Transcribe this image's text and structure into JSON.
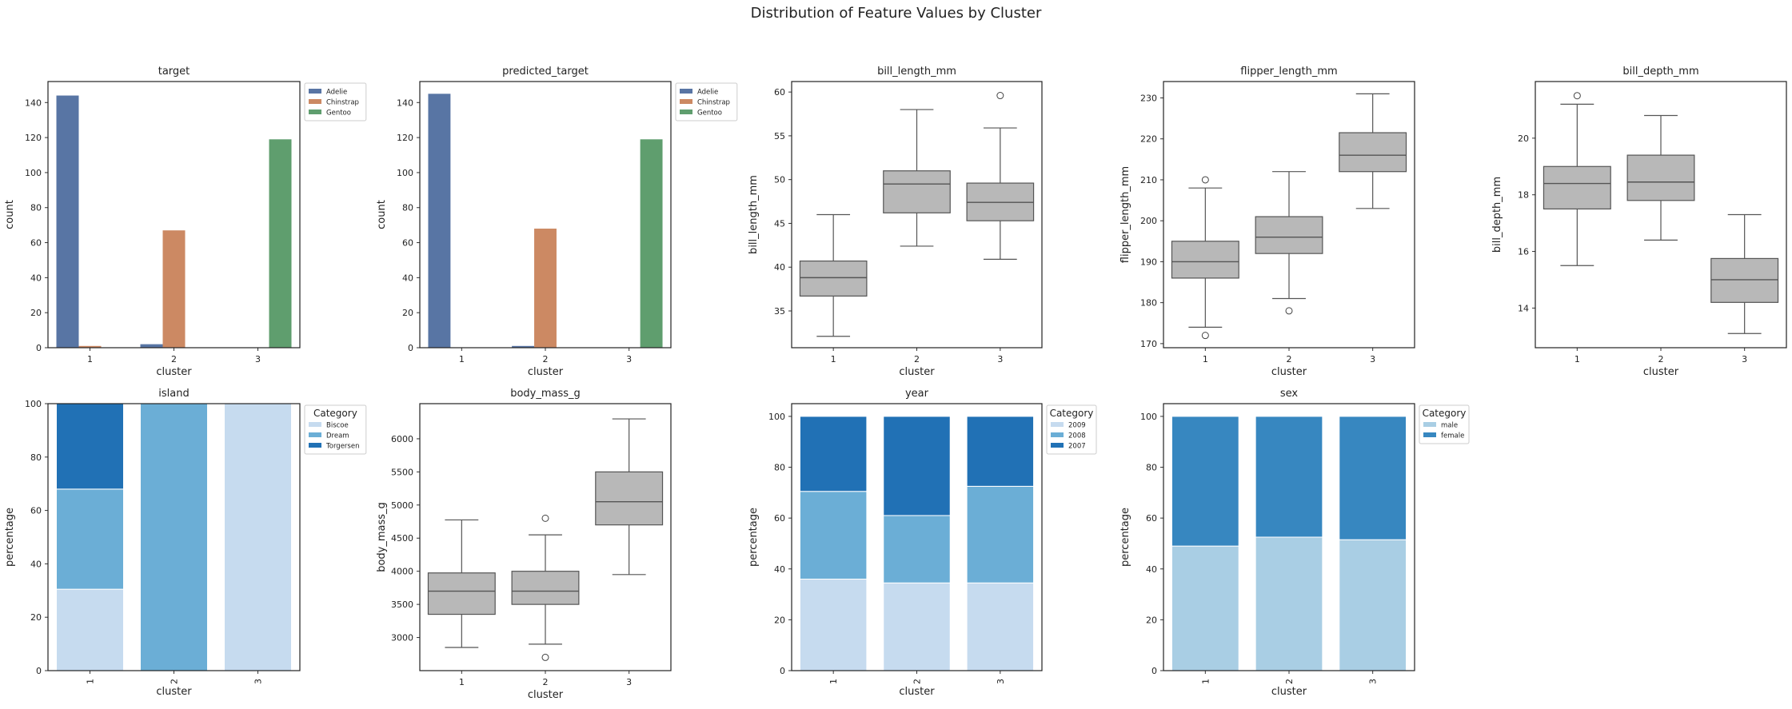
{
  "figure": {
    "title": "Distribution of Feature Values by Cluster"
  },
  "colors": {
    "adelie": "#5875a4",
    "chinstrap": "#cc8963",
    "gentoo": "#5f9e6e",
    "box": "#b8b8b8",
    "box_edge": "#555555",
    "blue_light": "#c6dbef",
    "blue_mid": "#6baed6",
    "blue_dark": "#2171b5",
    "sex_light": "#a9cee4",
    "sex_dark": "#3787c0"
  },
  "chart_data": [
    {
      "id": "target",
      "type": "bar",
      "title": "target",
      "xlabel": "cluster",
      "ylabel": "count",
      "categories": [
        "1",
        "2",
        "3"
      ],
      "ylim": [
        0,
        152
      ],
      "yticks": [
        0,
        20,
        40,
        60,
        80,
        100,
        120,
        140
      ],
      "series": [
        {
          "name": "Adelie",
          "color": "adelie",
          "values": [
            144,
            2,
            0
          ]
        },
        {
          "name": "Chinstrap",
          "color": "chinstrap",
          "values": [
            1,
            67,
            0
          ]
        },
        {
          "name": "Gentoo",
          "color": "gentoo",
          "values": [
            0,
            0,
            119
          ]
        }
      ],
      "legend": "upper-right-outside"
    },
    {
      "id": "predicted_target",
      "type": "bar",
      "title": "predicted_target",
      "xlabel": "cluster",
      "ylabel": "count",
      "categories": [
        "1",
        "2",
        "3"
      ],
      "ylim": [
        0,
        152
      ],
      "yticks": [
        0,
        20,
        40,
        60,
        80,
        100,
        120,
        140
      ],
      "series": [
        {
          "name": "Adelie",
          "color": "adelie",
          "values": [
            145,
            1,
            0
          ]
        },
        {
          "name": "Chinstrap",
          "color": "chinstrap",
          "values": [
            0,
            68,
            0
          ]
        },
        {
          "name": "Gentoo",
          "color": "gentoo",
          "values": [
            0,
            0,
            119
          ]
        }
      ],
      "legend": "upper-right-outside"
    },
    {
      "id": "bill_length_mm",
      "type": "box",
      "title": "bill_length_mm",
      "xlabel": "cluster",
      "ylabel": "bill_length_mm",
      "categories": [
        "1",
        "2",
        "3"
      ],
      "ylim": [
        30.8,
        61.2
      ],
      "yticks": [
        35,
        40,
        45,
        50,
        55,
        60
      ],
      "boxes": [
        {
          "whislo": 32.1,
          "q1": 36.7,
          "med": 38.8,
          "q3": 40.7,
          "whishi": 46.0,
          "fliers": []
        },
        {
          "whislo": 42.4,
          "q1": 46.2,
          "med": 49.5,
          "q3": 51.0,
          "whishi": 58.0,
          "fliers": []
        },
        {
          "whislo": 40.9,
          "q1": 45.3,
          "med": 47.4,
          "q3": 49.6,
          "whishi": 55.9,
          "fliers": [
            59.6
          ]
        }
      ]
    },
    {
      "id": "flipper_length_mm",
      "type": "box",
      "title": "flipper_length_mm",
      "xlabel": "cluster",
      "ylabel": "flipper_length_mm",
      "categories": [
        "1",
        "2",
        "3"
      ],
      "ylim": [
        169,
        234
      ],
      "yticks": [
        170,
        180,
        190,
        200,
        210,
        220,
        230
      ],
      "boxes": [
        {
          "whislo": 174,
          "q1": 186,
          "med": 190,
          "q3": 195,
          "whishi": 208,
          "fliers": [
            210,
            172
          ]
        },
        {
          "whislo": 181,
          "q1": 192,
          "med": 196,
          "q3": 201,
          "whishi": 212,
          "fliers": [
            178
          ]
        },
        {
          "whislo": 203,
          "q1": 212,
          "med": 216,
          "q3": 221.5,
          "whishi": 231,
          "fliers": []
        }
      ]
    },
    {
      "id": "bill_depth_mm",
      "type": "box",
      "title": "bill_depth_mm",
      "xlabel": "cluster",
      "ylabel": "bill_depth_mm",
      "categories": [
        "1",
        "2",
        "3"
      ],
      "ylim": [
        12.6,
        22.0
      ],
      "yticks": [
        14,
        16,
        18,
        20
      ],
      "boxes": [
        {
          "whislo": 15.5,
          "q1": 17.5,
          "med": 18.4,
          "q3": 19.0,
          "whishi": 21.2,
          "fliers": [
            21.5
          ]
        },
        {
          "whislo": 16.4,
          "q1": 17.8,
          "med": 18.45,
          "q3": 19.4,
          "whishi": 20.8,
          "fliers": []
        },
        {
          "whislo": 13.1,
          "q1": 14.2,
          "med": 15.0,
          "q3": 15.75,
          "whishi": 17.3,
          "fliers": []
        }
      ]
    },
    {
      "id": "island",
      "type": "stacked-bar",
      "title": "island",
      "xlabel": "cluster",
      "ylabel": "percentage",
      "categories": [
        "1",
        "2",
        "3"
      ],
      "ylim": [
        0,
        100
      ],
      "yticks": [
        0,
        20,
        40,
        60,
        80,
        100
      ],
      "rotate_xticks": true,
      "legend_title": "Category",
      "series": [
        {
          "name": "Biscoe",
          "color": "blue_light",
          "values": [
            30.5,
            0,
            100
          ]
        },
        {
          "name": "Dream",
          "color": "blue_mid",
          "values": [
            37.5,
            100,
            0
          ]
        },
        {
          "name": "Torgersen",
          "color": "blue_dark",
          "values": [
            32,
            0,
            0
          ]
        }
      ]
    },
    {
      "id": "body_mass_g",
      "type": "box",
      "title": "body_mass_g",
      "xlabel": "cluster",
      "ylabel": "body_mass_g",
      "categories": [
        "1",
        "2",
        "3"
      ],
      "ylim": [
        2500,
        6530
      ],
      "yticks": [
        3000,
        3500,
        4000,
        4500,
        5000,
        5500,
        6000
      ],
      "boxes": [
        {
          "whislo": 2850,
          "q1": 3350,
          "med": 3700,
          "q3": 3975,
          "whishi": 4775,
          "fliers": []
        },
        {
          "whislo": 2900,
          "q1": 3500,
          "med": 3700,
          "q3": 4000,
          "whishi": 4550,
          "fliers": [
            4800,
            2700
          ]
        },
        {
          "whislo": 3950,
          "q1": 4700,
          "med": 5050,
          "q3": 5500,
          "whishi": 6300,
          "fliers": []
        }
      ]
    },
    {
      "id": "year",
      "type": "stacked-bar",
      "title": "year",
      "xlabel": "cluster",
      "ylabel": "percentage",
      "categories": [
        "1",
        "2",
        "3"
      ],
      "ylim": [
        0,
        105
      ],
      "yticks": [
        0,
        20,
        40,
        60,
        80,
        100
      ],
      "rotate_xticks": true,
      "legend_title": "Category",
      "series": [
        {
          "name": "2009",
          "color": "blue_light",
          "values": [
            36,
            34.5,
            34.5
          ]
        },
        {
          "name": "2008",
          "color": "blue_mid",
          "values": [
            34.5,
            26.5,
            38
          ]
        },
        {
          "name": "2007",
          "color": "blue_dark",
          "values": [
            29.5,
            39,
            27.5
          ]
        }
      ]
    },
    {
      "id": "sex",
      "type": "stacked-bar",
      "title": "sex",
      "xlabel": "cluster",
      "ylabel": "percentage",
      "categories": [
        "1",
        "2",
        "3"
      ],
      "ylim": [
        0,
        105
      ],
      "yticks": [
        0,
        20,
        40,
        60,
        80,
        100
      ],
      "rotate_xticks": true,
      "legend_title": "Category",
      "series": [
        {
          "name": "male",
          "color": "sex_light",
          "values": [
            49,
            52.5,
            51.5
          ]
        },
        {
          "name": "female",
          "color": "sex_dark",
          "values": [
            51,
            47.5,
            48.5
          ]
        }
      ]
    }
  ]
}
